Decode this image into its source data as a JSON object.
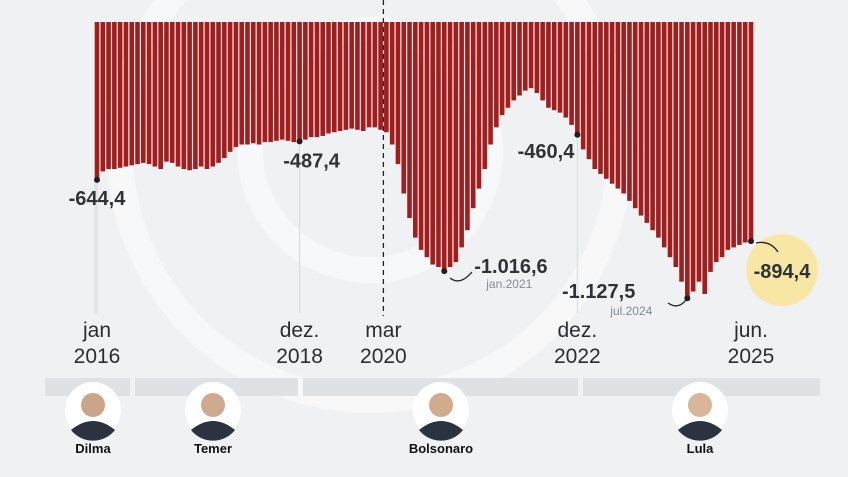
{
  "chart_data": {
    "type": "bar",
    "color": "#a51c1c",
    "ylim": [
      -1200,
      0
    ],
    "categories": [
      "jan\n2016",
      null,
      null,
      null,
      null,
      null,
      null,
      null,
      null,
      null,
      null,
      null,
      null,
      null,
      null,
      null,
      null,
      null,
      null,
      null,
      null,
      null,
      null,
      null,
      null,
      null,
      null,
      null,
      null,
      null,
      null,
      null,
      null,
      null,
      null,
      "dez.\n2018",
      null,
      null,
      null,
      null,
      null,
      null,
      null,
      null,
      null,
      null,
      null,
      null,
      null,
      null,
      "mar\n2020",
      null,
      null,
      null,
      null,
      null,
      null,
      null,
      null,
      null,
      null,
      null,
      null,
      null,
      null,
      null,
      null,
      null,
      null,
      null,
      null,
      null,
      null,
      null,
      null,
      null,
      null,
      null,
      null,
      null,
      null,
      null,
      null,
      "dez.\n2022",
      null,
      null,
      null,
      null,
      null,
      null,
      null,
      null,
      null,
      null,
      null,
      null,
      null,
      null,
      null,
      null,
      null,
      null,
      null,
      null,
      null,
      null,
      null,
      null,
      null,
      null,
      null,
      null,
      null,
      "jun.\n2025"
    ],
    "values": [
      -644.4,
      -610,
      -600,
      -600,
      -595,
      -590,
      -585,
      -580,
      -575,
      -580,
      -590,
      -600,
      -570,
      -575,
      -590,
      -600,
      -605,
      -600,
      -590,
      -600,
      -590,
      -575,
      -555,
      -530,
      -510,
      -500,
      -500,
      -495,
      -500,
      -490,
      -490,
      -485,
      -480,
      -485,
      -490,
      -487.4,
      -480,
      -470,
      -470,
      -465,
      -455,
      -450,
      -445,
      -440,
      -435,
      -440,
      -445,
      -430,
      -430,
      -440,
      -450,
      -500,
      -580,
      -700,
      -800,
      -880,
      -930,
      -960,
      -990,
      -1000,
      -1016.6,
      -1000,
      -980,
      -920,
      -850,
      -760,
      -680,
      -600,
      -500,
      -430,
      -380,
      -350,
      -320,
      -300,
      -280,
      -270,
      -290,
      -320,
      -350,
      -360,
      -370,
      -390,
      -420,
      -460.4,
      -520,
      -560,
      -600,
      -620,
      -640,
      -660,
      -680,
      -700,
      -730,
      -760,
      -790,
      -820,
      -850,
      -880,
      -920,
      -960,
      -1000,
      -1060,
      -1127.5,
      -1100,
      -1060,
      -1110,
      -1020,
      -980,
      -960,
      -930,
      -920,
      -910,
      -900,
      -894.4
    ],
    "value_labels": [
      "-644,4",
      null,
      null,
      null,
      null,
      null,
      null,
      null,
      null,
      null,
      null,
      null,
      null,
      null,
      null,
      null,
      null,
      null,
      null,
      null,
      null,
      null,
      null,
      null,
      null,
      null,
      null,
      null,
      null,
      null,
      null,
      null,
      null,
      null,
      null,
      "-487,4",
      null,
      null,
      null,
      null,
      null,
      null,
      null,
      null,
      null,
      null,
      null,
      null,
      null,
      null,
      null,
      null,
      null,
      null,
      null,
      null,
      null,
      null,
      null,
      null,
      "-1.016,6",
      null,
      null,
      null,
      null,
      null,
      null,
      null,
      null,
      null,
      null,
      null,
      null,
      null,
      null,
      null,
      null,
      null,
      null,
      null,
      null,
      null,
      null,
      "-460,4",
      null,
      null,
      null,
      null,
      null,
      null,
      null,
      null,
      null,
      null,
      null,
      null,
      null,
      null,
      null,
      null,
      null,
      null,
      "-1.127,5",
      null,
      null,
      null,
      null,
      null,
      null,
      null,
      null,
      null,
      null,
      "-894,4"
    ],
    "date_labels": [
      null,
      null,
      null,
      null,
      null,
      null,
      null,
      null,
      null,
      null,
      null,
      null,
      null,
      null,
      null,
      null,
      null,
      null,
      null,
      null,
      null,
      null,
      null,
      null,
      null,
      null,
      null,
      null,
      null,
      null,
      null,
      null,
      null,
      null,
      null,
      null,
      null,
      null,
      null,
      null,
      null,
      null,
      null,
      null,
      null,
      null,
      null,
      null,
      null,
      null,
      null,
      null,
      null,
      null,
      null,
      null,
      null,
      null,
      null,
      null,
      "jan.2021",
      null,
      null,
      null,
      null,
      null,
      null,
      null,
      null,
      null,
      null,
      null,
      null,
      null,
      null,
      null,
      null,
      null,
      null,
      null,
      null,
      null,
      null,
      null,
      null,
      null,
      null,
      null,
      null,
      null,
      null,
      null,
      null,
      null,
      null,
      null,
      null,
      null,
      null,
      null,
      null,
      null,
      "jul.2024",
      null,
      null,
      null,
      null,
      null,
      null,
      null,
      null,
      null,
      null,
      null
    ],
    "presidents": [
      {
        "name": "Dilma"
      },
      {
        "name": "Temer"
      },
      {
        "name": "Bolsonaro"
      },
      {
        "name": "Lula"
      }
    ]
  }
}
